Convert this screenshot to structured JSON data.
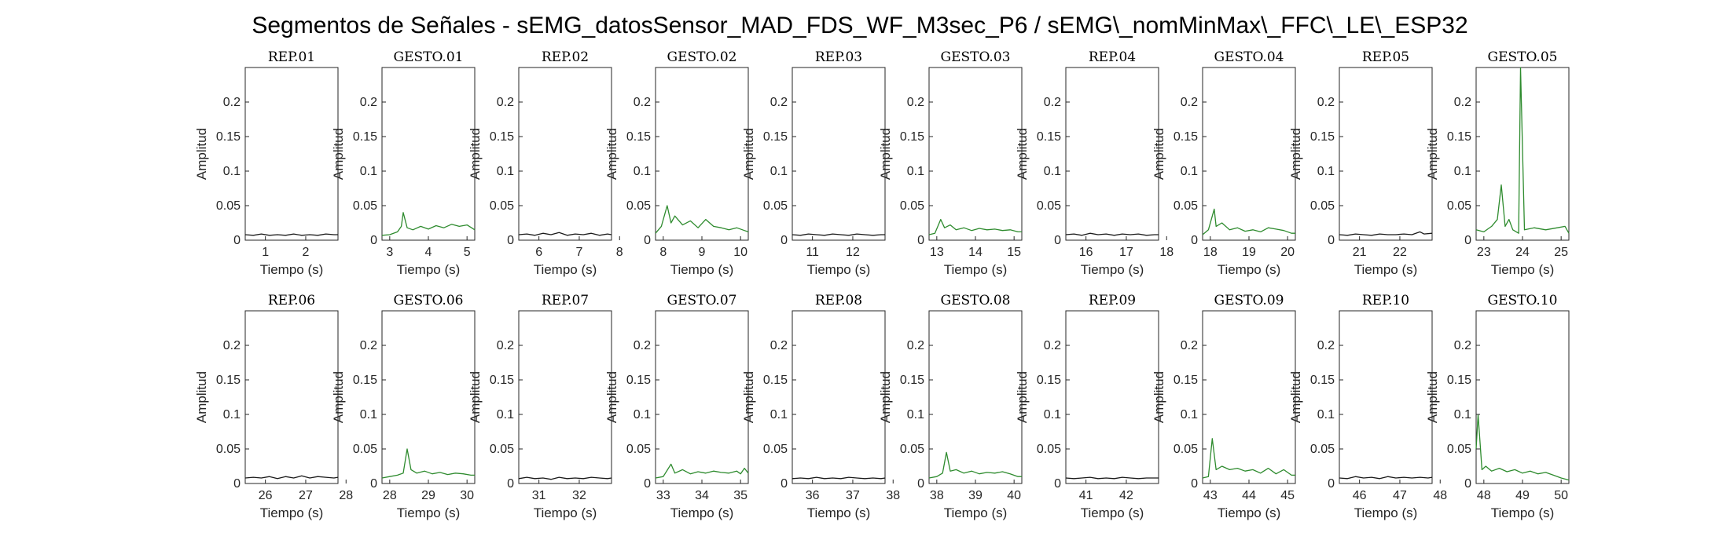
{
  "chart_data": {
    "type": "line",
    "title": "Segmentos de Señales - sEMG_datosSensor_MAD_FDS_WF_M3sec_P6 / sEMG\\_nomMinMax\\_FFC\\_LE\\_ESP32",
    "xlabel": "Tiempo (s)",
    "ylabel": "Amplitud",
    "ylim": [
      0,
      0.25
    ],
    "yticks": [
      0,
      0.05,
      0.1,
      0.15,
      0.2
    ],
    "yticklabels": [
      "0",
      "0.05",
      "0.1",
      "0.15",
      "0.2"
    ],
    "grid": false,
    "colors": {
      "rep": "#1a1a1a",
      "gesto": "#2e8b2e"
    },
    "panels": [
      {
        "title": "REP_01",
        "kind": "rep",
        "xlim": [
          0.5,
          2.8
        ],
        "xticks": [
          1,
          2
        ],
        "x": [
          0.5,
          0.7,
          0.9,
          1.1,
          1.3,
          1.5,
          1.7,
          1.9,
          2.1,
          2.3,
          2.5,
          2.7,
          2.8
        ],
        "y": [
          0.008,
          0.007,
          0.009,
          0.007,
          0.008,
          0.007,
          0.009,
          0.007,
          0.008,
          0.007,
          0.009,
          0.008,
          0.008
        ]
      },
      {
        "title": "GESTO_01",
        "kind": "gesto",
        "xlim": [
          2.8,
          5.2
        ],
        "xticks": [
          3,
          4,
          5
        ],
        "x": [
          2.8,
          3.0,
          3.2,
          3.3,
          3.35,
          3.45,
          3.6,
          3.8,
          4.0,
          4.2,
          4.4,
          4.6,
          4.8,
          5.0,
          5.2
        ],
        "y": [
          0.007,
          0.008,
          0.012,
          0.02,
          0.04,
          0.018,
          0.015,
          0.02,
          0.016,
          0.021,
          0.018,
          0.023,
          0.02,
          0.022,
          0.015
        ]
      },
      {
        "title": "REP_02",
        "kind": "rep",
        "xlim": [
          5.5,
          7.8
        ],
        "xticks": [
          6,
          7,
          8
        ],
        "x": [
          5.5,
          5.7,
          5.9,
          6.1,
          6.3,
          6.5,
          6.7,
          6.9,
          7.1,
          7.3,
          7.5,
          7.7,
          7.8
        ],
        "y": [
          0.008,
          0.009,
          0.007,
          0.01,
          0.008,
          0.011,
          0.007,
          0.009,
          0.008,
          0.01,
          0.007,
          0.009,
          0.008
        ]
      },
      {
        "title": "GESTO_02",
        "kind": "gesto",
        "xlim": [
          7.8,
          10.2
        ],
        "xticks": [
          8,
          9,
          10
        ],
        "x": [
          7.8,
          7.95,
          8.1,
          8.2,
          8.3,
          8.5,
          8.7,
          8.9,
          9.1,
          9.3,
          9.5,
          9.7,
          9.9,
          10.1,
          10.2
        ],
        "y": [
          0.01,
          0.02,
          0.05,
          0.025,
          0.035,
          0.022,
          0.028,
          0.018,
          0.03,
          0.02,
          0.018,
          0.015,
          0.018,
          0.014,
          0.012
        ]
      },
      {
        "title": "REP_03",
        "kind": "rep",
        "xlim": [
          10.5,
          12.8
        ],
        "xticks": [
          11,
          12
        ],
        "x": [
          10.5,
          10.7,
          10.9,
          11.1,
          11.3,
          11.5,
          11.7,
          11.9,
          12.1,
          12.3,
          12.5,
          12.7,
          12.8
        ],
        "y": [
          0.008,
          0.007,
          0.009,
          0.008,
          0.007,
          0.009,
          0.008,
          0.007,
          0.009,
          0.008,
          0.007,
          0.008,
          0.008
        ]
      },
      {
        "title": "GESTO_03",
        "kind": "gesto",
        "xlim": [
          12.8,
          15.2
        ],
        "xticks": [
          13,
          14,
          15
        ],
        "x": [
          12.8,
          12.95,
          13.1,
          13.2,
          13.35,
          13.5,
          13.7,
          13.9,
          14.1,
          14.3,
          14.5,
          14.7,
          14.9,
          15.1,
          15.2
        ],
        "y": [
          0.008,
          0.01,
          0.03,
          0.018,
          0.022,
          0.015,
          0.018,
          0.014,
          0.017,
          0.015,
          0.016,
          0.014,
          0.015,
          0.012,
          0.012
        ]
      },
      {
        "title": "REP_04",
        "kind": "rep",
        "xlim": [
          15.5,
          17.8
        ],
        "xticks": [
          16,
          17,
          18
        ],
        "x": [
          15.5,
          15.7,
          15.9,
          16.1,
          16.3,
          16.5,
          16.7,
          16.9,
          17.1,
          17.3,
          17.5,
          17.7,
          17.8
        ],
        "y": [
          0.008,
          0.009,
          0.007,
          0.01,
          0.008,
          0.009,
          0.007,
          0.009,
          0.008,
          0.009,
          0.007,
          0.008,
          0.008
        ]
      },
      {
        "title": "GESTO_04",
        "kind": "gesto",
        "xlim": [
          17.8,
          20.2
        ],
        "xticks": [
          18,
          19,
          20
        ],
        "x": [
          17.8,
          17.95,
          18.1,
          18.15,
          18.3,
          18.5,
          18.7,
          18.9,
          19.1,
          19.3,
          19.5,
          19.7,
          19.9,
          20.1,
          20.2
        ],
        "y": [
          0.008,
          0.015,
          0.045,
          0.02,
          0.025,
          0.015,
          0.018,
          0.013,
          0.015,
          0.012,
          0.018,
          0.016,
          0.014,
          0.01,
          0.01
        ]
      },
      {
        "title": "REP_05",
        "kind": "rep",
        "xlim": [
          20.5,
          22.8
        ],
        "xticks": [
          21,
          22
        ],
        "x": [
          20.5,
          20.7,
          20.9,
          21.1,
          21.3,
          21.5,
          21.7,
          21.9,
          22.1,
          22.3,
          22.5,
          22.6,
          22.8
        ],
        "y": [
          0.008,
          0.007,
          0.009,
          0.008,
          0.007,
          0.009,
          0.008,
          0.008,
          0.009,
          0.008,
          0.012,
          0.009,
          0.01
        ]
      },
      {
        "title": "GESTO_05",
        "kind": "gesto",
        "xlim": [
          22.8,
          25.2
        ],
        "xticks": [
          23,
          24,
          25
        ],
        "x": [
          22.8,
          23.0,
          23.2,
          23.35,
          23.45,
          23.55,
          23.65,
          23.75,
          23.9,
          23.95,
          24.05,
          24.3,
          24.6,
          24.9,
          25.1,
          25.2
        ],
        "y": [
          0.015,
          0.012,
          0.02,
          0.03,
          0.08,
          0.02,
          0.03,
          0.015,
          0.01,
          0.25,
          0.015,
          0.018,
          0.015,
          0.018,
          0.02,
          0.01
        ]
      },
      {
        "title": "REP_06",
        "kind": "rep",
        "xlim": [
          25.5,
          27.8
        ],
        "xticks": [
          26,
          27,
          28
        ],
        "x": [
          25.5,
          25.7,
          25.9,
          26.1,
          26.3,
          26.5,
          26.7,
          26.9,
          27.1,
          27.3,
          27.5,
          27.7,
          27.8
        ],
        "y": [
          0.008,
          0.009,
          0.008,
          0.01,
          0.007,
          0.01,
          0.008,
          0.011,
          0.008,
          0.01,
          0.009,
          0.008,
          0.009
        ]
      },
      {
        "title": "GESTO_06",
        "kind": "gesto",
        "xlim": [
          27.8,
          30.2
        ],
        "xticks": [
          28,
          29,
          30
        ],
        "x": [
          27.8,
          28.0,
          28.2,
          28.35,
          28.45,
          28.55,
          28.7,
          28.9,
          29.1,
          29.3,
          29.5,
          29.7,
          29.9,
          30.1,
          30.2
        ],
        "y": [
          0.008,
          0.01,
          0.012,
          0.015,
          0.05,
          0.02,
          0.015,
          0.018,
          0.014,
          0.016,
          0.013,
          0.015,
          0.014,
          0.012,
          0.012
        ]
      },
      {
        "title": "REP_07",
        "kind": "rep",
        "xlim": [
          30.5,
          32.8
        ],
        "xticks": [
          31,
          32
        ],
        "x": [
          30.5,
          30.7,
          30.9,
          31.1,
          31.3,
          31.5,
          31.7,
          31.9,
          32.1,
          32.3,
          32.5,
          32.7,
          32.8
        ],
        "y": [
          0.007,
          0.009,
          0.007,
          0.008,
          0.006,
          0.009,
          0.007,
          0.008,
          0.007,
          0.009,
          0.008,
          0.007,
          0.008
        ]
      },
      {
        "title": "GESTO_07",
        "kind": "gesto",
        "xlim": [
          32.8,
          35.2
        ],
        "xticks": [
          33,
          34,
          35
        ],
        "x": [
          32.8,
          33.0,
          33.2,
          33.3,
          33.5,
          33.7,
          33.9,
          34.1,
          34.3,
          34.5,
          34.7,
          34.9,
          35.0,
          35.1,
          35.2
        ],
        "y": [
          0.008,
          0.01,
          0.028,
          0.015,
          0.02,
          0.014,
          0.017,
          0.015,
          0.018,
          0.016,
          0.015,
          0.018,
          0.014,
          0.022,
          0.015
        ]
      },
      {
        "title": "REP_08",
        "kind": "rep",
        "xlim": [
          35.5,
          37.8
        ],
        "xticks": [
          36,
          37,
          38
        ],
        "x": [
          35.5,
          35.7,
          35.9,
          36.1,
          36.3,
          36.5,
          36.7,
          36.9,
          37.1,
          37.3,
          37.5,
          37.7,
          37.8
        ],
        "y": [
          0.007,
          0.008,
          0.007,
          0.009,
          0.007,
          0.008,
          0.007,
          0.009,
          0.008,
          0.007,
          0.008,
          0.007,
          0.008
        ]
      },
      {
        "title": "GESTO_08",
        "kind": "gesto",
        "xlim": [
          37.8,
          40.2
        ],
        "xticks": [
          38,
          39,
          40
        ],
        "x": [
          37.8,
          38.0,
          38.15,
          38.25,
          38.35,
          38.5,
          38.7,
          38.9,
          39.1,
          39.3,
          39.5,
          39.7,
          39.9,
          40.1,
          40.2
        ],
        "y": [
          0.008,
          0.01,
          0.015,
          0.045,
          0.018,
          0.02,
          0.015,
          0.018,
          0.014,
          0.016,
          0.015,
          0.017,
          0.014,
          0.01,
          0.01
        ]
      },
      {
        "title": "REP_09",
        "kind": "rep",
        "xlim": [
          40.5,
          42.8
        ],
        "xticks": [
          41,
          42
        ],
        "x": [
          40.5,
          40.7,
          40.9,
          41.1,
          41.3,
          41.5,
          41.7,
          41.9,
          42.1,
          42.3,
          42.5,
          42.7,
          42.8
        ],
        "y": [
          0.008,
          0.007,
          0.008,
          0.009,
          0.007,
          0.008,
          0.007,
          0.009,
          0.008,
          0.007,
          0.008,
          0.008,
          0.008
        ]
      },
      {
        "title": "GESTO_09",
        "kind": "gesto",
        "xlim": [
          42.8,
          45.2
        ],
        "xticks": [
          43,
          44,
          45
        ],
        "x": [
          42.8,
          42.95,
          43.05,
          43.15,
          43.3,
          43.5,
          43.7,
          43.9,
          44.1,
          44.3,
          44.5,
          44.7,
          44.9,
          45.1,
          45.2
        ],
        "y": [
          0.008,
          0.01,
          0.065,
          0.02,
          0.025,
          0.02,
          0.022,
          0.018,
          0.02,
          0.015,
          0.022,
          0.014,
          0.02,
          0.012,
          0.012
        ]
      },
      {
        "title": "REP_10",
        "kind": "rep",
        "xlim": [
          45.5,
          47.8
        ],
        "xticks": [
          46,
          47,
          48
        ],
        "x": [
          45.5,
          45.7,
          45.9,
          46.1,
          46.3,
          46.5,
          46.7,
          46.9,
          47.1,
          47.3,
          47.5,
          47.7,
          47.8
        ],
        "y": [
          0.008,
          0.007,
          0.01,
          0.008,
          0.009,
          0.007,
          0.01,
          0.008,
          0.009,
          0.008,
          0.009,
          0.008,
          0.009
        ]
      },
      {
        "title": "GESTO_10",
        "kind": "gesto",
        "xlim": [
          47.8,
          50.2
        ],
        "xticks": [
          48,
          49,
          50
        ],
        "x": [
          47.8,
          47.85,
          47.95,
          48.05,
          48.2,
          48.4,
          48.6,
          48.8,
          49.0,
          49.2,
          49.4,
          49.6,
          49.8,
          50.0,
          50.2
        ],
        "y": [
          0.05,
          0.1,
          0.02,
          0.025,
          0.018,
          0.022,
          0.017,
          0.02,
          0.015,
          0.018,
          0.014,
          0.016,
          0.012,
          0.008,
          0.005
        ]
      }
    ]
  }
}
